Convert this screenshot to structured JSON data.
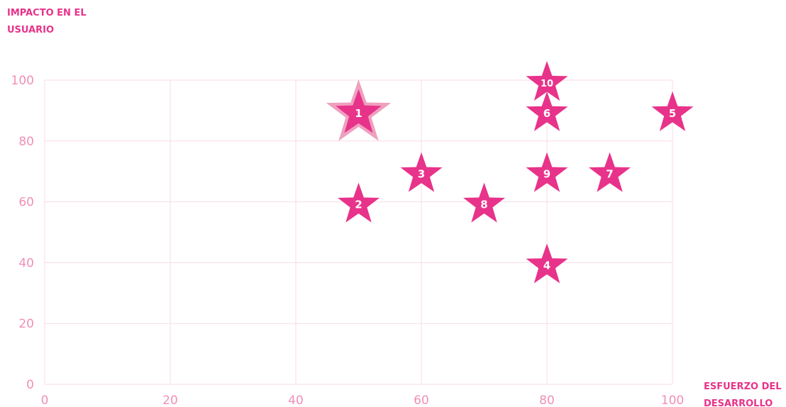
{
  "chart_data": {
    "type": "scatter",
    "xlabel_lines": [
      "ESFUERZO DEL",
      "DESARROLLO"
    ],
    "ylabel_lines": [
      "IMPACTO EN EL",
      "USUARIO"
    ],
    "xlim": [
      0,
      100
    ],
    "ylim": [
      0,
      100
    ],
    "xticks": [
      0,
      20,
      40,
      60,
      80,
      100
    ],
    "yticks": [
      0,
      20,
      40,
      60,
      80,
      100
    ],
    "grid": true,
    "marker": "star",
    "color": "#e8338a",
    "highlight_color": "#ec8fb4",
    "points": [
      {
        "label": "1",
        "x": 50,
        "y": 90,
        "highlight": true
      },
      {
        "label": "2",
        "x": 50,
        "y": 60
      },
      {
        "label": "3",
        "x": 60,
        "y": 70
      },
      {
        "label": "4",
        "x": 80,
        "y": 40
      },
      {
        "label": "5",
        "x": 100,
        "y": 90
      },
      {
        "label": "6",
        "x": 80,
        "y": 90
      },
      {
        "label": "7",
        "x": 90,
        "y": 70
      },
      {
        "label": "8",
        "x": 70,
        "y": 60
      },
      {
        "label": "9",
        "x": 80,
        "y": 70
      },
      {
        "label": "10",
        "x": 80,
        "y": 100
      }
    ]
  }
}
